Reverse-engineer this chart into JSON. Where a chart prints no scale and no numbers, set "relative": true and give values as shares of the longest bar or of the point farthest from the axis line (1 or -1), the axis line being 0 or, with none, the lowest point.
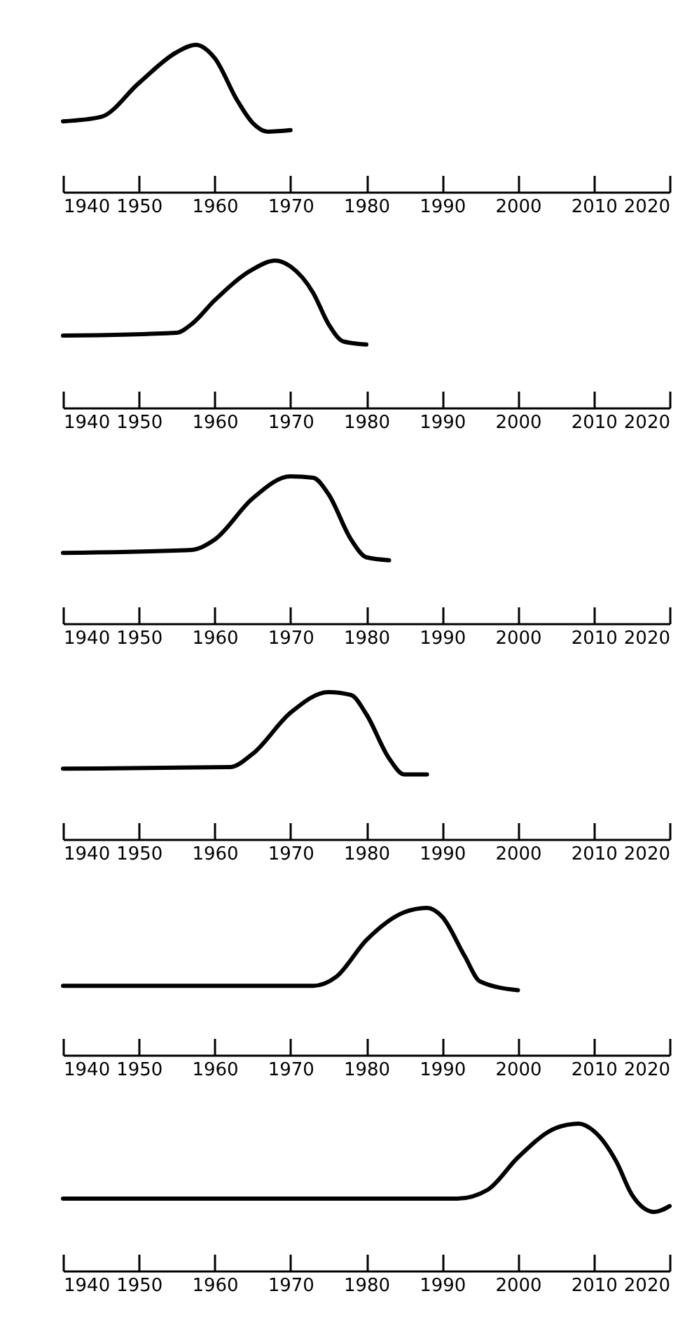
{
  "chart_data": [
    {
      "type": "line",
      "relative": true,
      "xlim": [
        1940,
        2020
      ],
      "xticks": [
        1940,
        1950,
        1960,
        1970,
        1980,
        1990,
        2000,
        2010,
        2020
      ],
      "x": [
        1940,
        1945,
        1950,
        1955,
        1957.5,
        1960,
        1963,
        1965,
        1967,
        1970
      ],
      "series": [
        {
          "color": "#000000",
          "values": [
            0.48,
            0.51,
            0.74,
            0.95,
            1,
            0.91,
            0.62,
            0.47,
            0.41,
            0.42
          ]
        }
      ]
    },
    {
      "type": "line",
      "relative": true,
      "xlim": [
        1940,
        2020
      ],
      "xticks": [
        1940,
        1950,
        1960,
        1970,
        1980,
        1990,
        2000,
        2010,
        2020
      ],
      "x": [
        1940,
        1955,
        1957,
        1960,
        1965,
        1968,
        1970,
        1973,
        1975,
        1977,
        1980
      ],
      "series": [
        {
          "color": "#000000",
          "values": [
            0.49,
            0.51,
            0.57,
            0.73,
            0.94,
            1,
            0.96,
            0.78,
            0.57,
            0.45,
            0.43
          ]
        }
      ]
    },
    {
      "type": "line",
      "relative": true,
      "xlim": [
        1940,
        2020
      ],
      "xticks": [
        1940,
        1950,
        1960,
        1970,
        1980,
        1990,
        2000,
        2010,
        2020
      ],
      "x": [
        1940,
        1957,
        1960,
        1965,
        1970,
        1973,
        1975,
        1978,
        1980,
        1983
      ],
      "series": [
        {
          "color": "#000000",
          "values": [
            0.48,
            0.5,
            0.57,
            0.85,
            1,
            0.99,
            0.88,
            0.57,
            0.45,
            0.43
          ]
        }
      ]
    },
    {
      "type": "line",
      "relative": true,
      "xlim": [
        1940,
        2020
      ],
      "xticks": [
        1940,
        1950,
        1960,
        1970,
        1980,
        1990,
        2000,
        2010,
        2020
      ],
      "x": [
        1940,
        1962,
        1965,
        1970,
        1975,
        1978,
        1980,
        1983,
        1985,
        1988
      ],
      "series": [
        {
          "color": "#000000",
          "values": [
            0.48,
            0.49,
            0.58,
            0.86,
            1,
            0.98,
            0.85,
            0.55,
            0.44,
            0.44
          ]
        }
      ]
    },
    {
      "type": "line",
      "relative": true,
      "xlim": [
        1940,
        2020
      ],
      "xticks": [
        1940,
        1950,
        1960,
        1970,
        1980,
        1990,
        2000,
        2010,
        2020
      ],
      "x": [
        1940,
        1973,
        1976,
        1980,
        1985,
        1988,
        1990,
        1993,
        1995,
        2000
      ],
      "series": [
        {
          "color": "#000000",
          "values": [
            0.47,
            0.47,
            0.53,
            0.78,
            0.97,
            1,
            0.94,
            0.67,
            0.5,
            0.44
          ]
        }
      ]
    },
    {
      "type": "line",
      "relative": true,
      "xlim": [
        1940,
        2020
      ],
      "xticks": [
        1940,
        1950,
        1960,
        1970,
        1980,
        1990,
        2000,
        2010,
        2020
      ],
      "x": [
        1940,
        1992,
        1996,
        2000,
        2005,
        2008,
        2010,
        2013,
        2015,
        2018,
        2020
      ],
      "series": [
        {
          "color": "#000000",
          "values": [
            0.49,
            0.49,
            0.55,
            0.77,
            0.97,
            1,
            0.95,
            0.74,
            0.52,
            0.4,
            0.44
          ]
        }
      ]
    }
  ]
}
